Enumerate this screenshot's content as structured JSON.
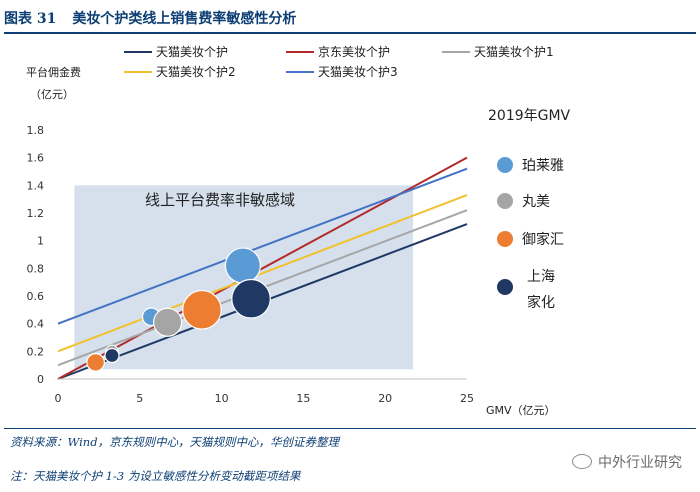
{
  "figure": {
    "number": "图表 31",
    "title": "美妆个护类线上销售费率敏感性分析",
    "source": "资料来源：Wind，京东规则中心，天猫规则中心，华创证券整理",
    "note": "注：天猫美妆个护 1-3 为设立敏感性分析变动截距项结果",
    "brand": "中外行业研究"
  },
  "chart_data": {
    "type": "scatter",
    "ylabel_lines": [
      "平台佣金费",
      "（亿元）"
    ],
    "xlabel": "GMV（亿元）",
    "xlim": [
      0,
      25
    ],
    "ylim": [
      0,
      1.8
    ],
    "x_ticks": [
      0,
      5,
      10,
      15,
      20,
      25
    ],
    "y_ticks": [
      0,
      0.2,
      0.4,
      0.6,
      0.8,
      1,
      1.2,
      1.4,
      1.6,
      1.8
    ],
    "y_tick_labels": [
      "0",
      "0.2",
      "0.4",
      "0.6",
      "0.8",
      "1",
      "1.2",
      "1.4",
      "1.6",
      "1.8"
    ],
    "grid": false,
    "region": {
      "label": "线上平台费率非敏感域",
      "x": [
        1,
        21.7
      ],
      "y": [
        0.07,
        1.4
      ],
      "color": "#d5e0ec"
    },
    "series": [
      {
        "name": "天猫美妆个护",
        "type": "line",
        "color": "#1f3864",
        "x": [
          0,
          25
        ],
        "y": [
          0,
          1.12
        ]
      },
      {
        "name": "京东美妆个护",
        "type": "line",
        "color": "#b22a2a",
        "x": [
          0,
          25
        ],
        "y": [
          0,
          1.6
        ]
      },
      {
        "name": "天猫美妆个护1",
        "type": "line",
        "color": "#a6a6a6",
        "x": [
          0,
          25
        ],
        "y": [
          0.1,
          1.22
        ]
      },
      {
        "name": "天猫美妆个护2",
        "type": "line",
        "color": "#f2c12e",
        "x": [
          0,
          25
        ],
        "y": [
          0.2,
          1.33
        ]
      },
      {
        "name": "天猫美妆个护3",
        "type": "line",
        "color": "#4472c4",
        "x": [
          0,
          25
        ],
        "y": [
          0.4,
          1.52
        ]
      }
    ],
    "bubble_legend_title": "2019年GMV",
    "bubbles": [
      {
        "name": "珀莱雅",
        "color": "#5b9bd5",
        "points": [
          {
            "x": 5.7,
            "y": 0.45,
            "r": 5
          },
          {
            "x": 11.3,
            "y": 0.82,
            "r": 10
          }
        ]
      },
      {
        "name": "丸美",
        "color": "#a5a5a5",
        "points": [
          {
            "x": 3.3,
            "y": 0.2,
            "r": 3.5
          },
          {
            "x": 6.7,
            "y": 0.41,
            "r": 8
          }
        ]
      },
      {
        "name": "御家汇",
        "color": "#ed7d31",
        "points": [
          {
            "x": 2.3,
            "y": 0.12,
            "r": 5
          },
          {
            "x": 8.8,
            "y": 0.5,
            "r": 11
          }
        ]
      },
      {
        "name": "上海家化",
        "name_lines": [
          "上海",
          "家化"
        ],
        "color": "#1f3864",
        "points": [
          {
            "x": 3.3,
            "y": 0.17,
            "r": 4
          },
          {
            "x": 11.8,
            "y": 0.58,
            "r": 11
          }
        ]
      }
    ]
  }
}
